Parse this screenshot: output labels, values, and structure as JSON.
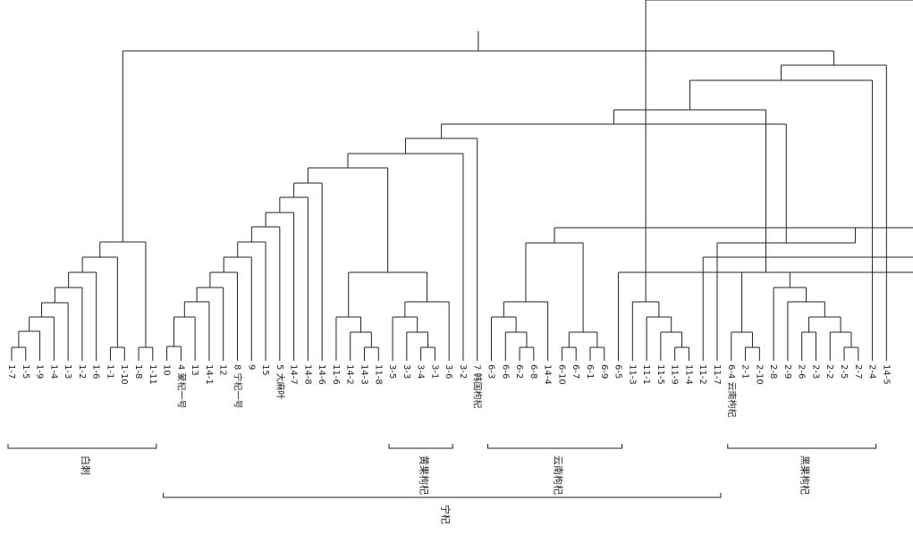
{
  "diagram": {
    "type": "dendrogram",
    "line_color": "#222222",
    "leaves": [
      "1-7",
      "1-5",
      "1-9",
      "1-4",
      "1-3",
      "1-2",
      "1-6",
      "1-1",
      "1-10",
      "1-8",
      "1-11",
      "10",
      "4 蒙杞一号",
      "13",
      "14-1",
      "12",
      "8 宁杞一号",
      "9",
      "15",
      "5 大麻叶",
      "14-7",
      "14-8",
      "14-6",
      "11-6",
      "14-2",
      "14-3",
      "11-8",
      "3-5",
      "3-3",
      "3-4",
      "3-1",
      "3-6",
      "3-2",
      "7 韩国枸杞",
      "6-3",
      "6-6",
      "6-2",
      "6-8",
      "14-4",
      "6-10",
      "6-7",
      "6-1",
      "6-9",
      "6-5",
      "11-3",
      "11-1",
      "11-5",
      "11-9",
      "11-4",
      "11-2",
      "11-7",
      "6-4 云南枸杞",
      "2-1",
      "2-10",
      "2-8",
      "2-9",
      "2-6",
      "2-3",
      "2-2",
      "2-5",
      "2-7",
      "2-4",
      "14-5"
    ],
    "groups": [
      {
        "label": "白刺",
        "from_leaf": 0,
        "to_leaf": 10
      },
      {
        "label": "黄果枸杞",
        "from_leaf": 27,
        "to_leaf": 31
      },
      {
        "label": "云南枸杞",
        "from_leaf": 34,
        "to_leaf": 43
      },
      {
        "label": "黑果枸杞",
        "from_leaf": 51,
        "to_leaf": 61
      },
      {
        "label": "宁杞",
        "from_leaf": 11,
        "to_leaf": 50
      }
    ]
  }
}
